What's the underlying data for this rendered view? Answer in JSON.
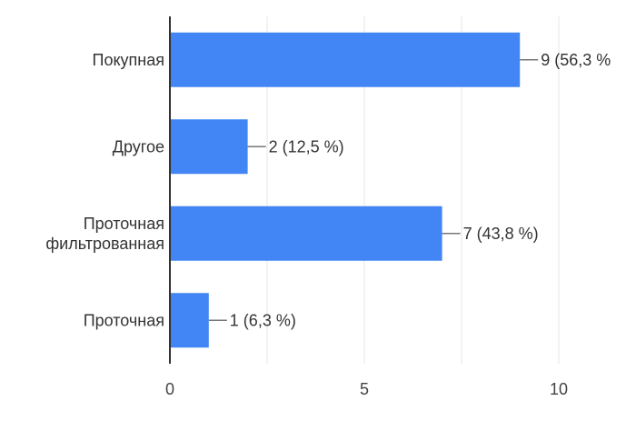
{
  "chart_data": {
    "type": "bar",
    "orientation": "horizontal",
    "categories": [
      [
        "Покупная"
      ],
      [
        "Другое"
      ],
      [
        "Проточная",
        "фильтрованная"
      ],
      [
        "Проточная"
      ]
    ],
    "values": [
      9,
      2,
      7,
      1
    ],
    "data_labels": [
      "9 (56,3 %",
      "2 (12,5 %)",
      "7 (43,8 %)",
      "1 (6,3 %)"
    ],
    "xlim": [
      0,
      10
    ],
    "x_ticks": [
      0,
      5,
      10
    ],
    "grid": true,
    "legend": "none",
    "bar_color": "#4285f4",
    "title": "",
    "xlabel": "",
    "ylabel": ""
  }
}
